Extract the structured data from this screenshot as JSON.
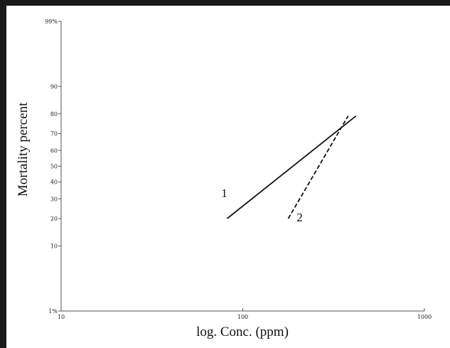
{
  "chart_data": {
    "type": "line",
    "title": "",
    "xlabel": "log. Conc. (ppm)",
    "ylabel": "Mortality percent",
    "x_scale": "log",
    "y_scale": "probit",
    "xlim": [
      10,
      1000
    ],
    "ylim": [
      1,
      99
    ],
    "x_ticks": [
      {
        "value": 10,
        "label": "10"
      },
      {
        "value": 100,
        "label": "100"
      },
      {
        "value": 1000,
        "label": "1000"
      }
    ],
    "y_ticks": [
      {
        "value": 1,
        "label": "1%"
      },
      {
        "value": 10,
        "label": "10"
      },
      {
        "value": 20,
        "label": "20"
      },
      {
        "value": 30,
        "label": "30"
      },
      {
        "value": 40,
        "label": "40"
      },
      {
        "value": 50,
        "label": "50"
      },
      {
        "value": 60,
        "label": "60"
      },
      {
        "value": 70,
        "label": "70"
      },
      {
        "value": 80,
        "label": "80"
      },
      {
        "value": 90,
        "label": "90"
      },
      {
        "value": 99,
        "label": "99%"
      }
    ],
    "grid": false,
    "series": [
      {
        "label": "1",
        "style": "solid",
        "x": [
          82,
          420
        ],
        "y": [
          20,
          79
        ]
      },
      {
        "label": "2",
        "style": "dashed",
        "x": [
          178,
          380
        ],
        "y": [
          20,
          79
        ]
      }
    ]
  }
}
